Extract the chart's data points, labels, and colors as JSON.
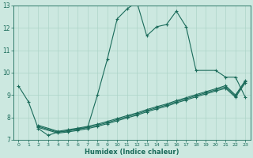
{
  "xlabel": "Humidex (Indice chaleur)",
  "xlim": [
    -0.5,
    23.5
  ],
  "ylim": [
    7,
    13
  ],
  "xticks": [
    0,
    1,
    2,
    3,
    4,
    5,
    6,
    7,
    8,
    9,
    10,
    11,
    12,
    13,
    14,
    15,
    16,
    17,
    18,
    19,
    20,
    21,
    22,
    23
  ],
  "yticks": [
    7,
    8,
    9,
    10,
    11,
    12,
    13
  ],
  "bg_color": "#cce8e0",
  "line_color": "#1a6b5a",
  "grid_color": "#add4c8",
  "line1_x": [
    0,
    1,
    2,
    3,
    4,
    5,
    6,
    7,
    8,
    9,
    10,
    11,
    12,
    13,
    14,
    15,
    16,
    17,
    18,
    20,
    21,
    22,
    23
  ],
  "line1_y": [
    9.4,
    8.7,
    7.5,
    7.2,
    7.35,
    7.4,
    7.5,
    7.55,
    9.0,
    10.6,
    12.4,
    12.85,
    13.15,
    11.65,
    12.05,
    12.15,
    12.75,
    12.05,
    10.1,
    10.1,
    9.8,
    9.8,
    8.9
  ],
  "line2_x": [
    2,
    4,
    5,
    6,
    7,
    8,
    9,
    10,
    11,
    12,
    13,
    14,
    15,
    16,
    17,
    18,
    19,
    20,
    21,
    22,
    23
  ],
  "line2_y": [
    7.55,
    7.3,
    7.35,
    7.42,
    7.5,
    7.6,
    7.72,
    7.85,
    7.98,
    8.1,
    8.25,
    8.38,
    8.5,
    8.65,
    8.78,
    8.92,
    9.05,
    9.18,
    9.3,
    8.9,
    9.55
  ],
  "line3_x": [
    2,
    4,
    5,
    6,
    7,
    8,
    9,
    10,
    11,
    12,
    13,
    14,
    15,
    16,
    17,
    18,
    19,
    20,
    21,
    22,
    23
  ],
  "line3_y": [
    7.65,
    7.38,
    7.45,
    7.52,
    7.6,
    7.7,
    7.82,
    7.95,
    8.08,
    8.2,
    8.35,
    8.48,
    8.6,
    8.75,
    8.88,
    9.02,
    9.15,
    9.28,
    9.42,
    9.0,
    9.65
  ],
  "line4_x": [
    2,
    4,
    5,
    6,
    7,
    8,
    9,
    10,
    11,
    12,
    13,
    14,
    15,
    16,
    17,
    18,
    19,
    20,
    21,
    22,
    23
  ],
  "line4_y": [
    7.6,
    7.34,
    7.4,
    7.47,
    7.55,
    7.65,
    7.77,
    7.9,
    8.03,
    8.15,
    8.3,
    8.43,
    8.55,
    8.7,
    8.83,
    8.97,
    9.1,
    9.23,
    9.36,
    8.95,
    9.6
  ]
}
